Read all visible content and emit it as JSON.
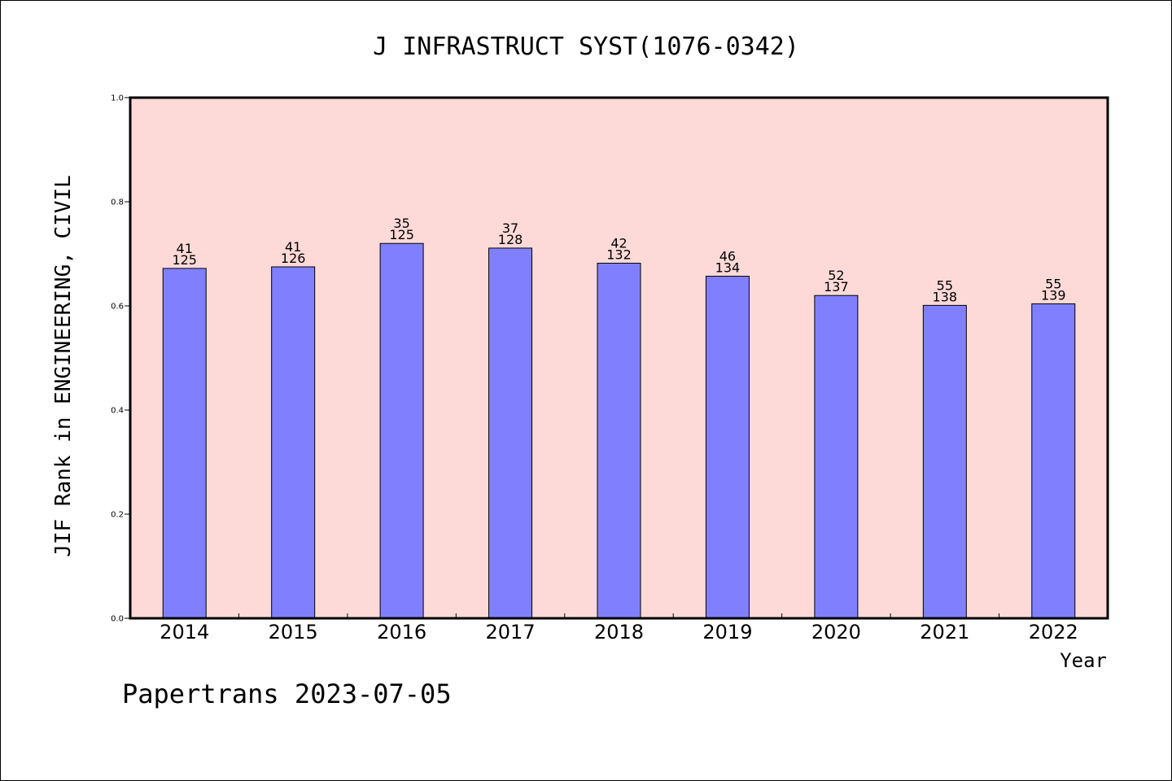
{
  "chart_data": {
    "type": "bar",
    "title": "J INFRASTRUCT SYST(1076-0342)",
    "xlabel": "Year",
    "ylabel": "JIF Rank in ENGINEERING, CIVIL",
    "ylim": [
      0,
      1.0
    ],
    "yticks": [
      "0.0",
      "0.2",
      "0.4",
      "0.6",
      "0.8",
      "1.0"
    ],
    "categories": [
      "2014",
      "2015",
      "2016",
      "2017",
      "2018",
      "2019",
      "2020",
      "2021",
      "2022"
    ],
    "values": [
      0.672,
      0.675,
      0.72,
      0.711,
      0.682,
      0.657,
      0.62,
      0.601,
      0.604
    ],
    "rank": [
      "41",
      "41",
      "35",
      "37",
      "42",
      "46",
      "52",
      "55",
      "55"
    ],
    "total": [
      "125",
      "126",
      "125",
      "128",
      "132",
      "134",
      "137",
      "138",
      "139"
    ],
    "grid": false,
    "colors": {
      "plot_background": "#fddad8",
      "bar_fill": "#8080ff",
      "bar_stroke": "#000000"
    }
  },
  "footer": {
    "source": "Papertrans 2023-07-05"
  }
}
